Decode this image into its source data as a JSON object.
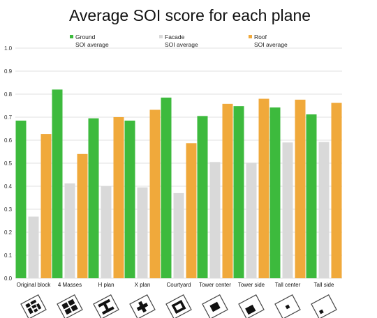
{
  "chart_data": {
    "type": "bar",
    "title": "Average SOI score for each plane",
    "xlabel": "",
    "ylabel": "",
    "ylim": [
      0,
      1
    ],
    "yticks": [
      "0.0",
      "0.1",
      "0.2",
      "0.3",
      "0.4",
      "0.5",
      "0.6",
      "0.7",
      "0.8",
      "0.9",
      "1.0"
    ],
    "grid": true,
    "legend_position": "top",
    "categories": [
      "Original block",
      "4 Masses",
      "H plan",
      "X plan",
      "Courtyard",
      "Tower center",
      "Tower side",
      "Tall center",
      "Tall side"
    ],
    "series": [
      {
        "name": "Ground\nSOI average",
        "color": "#3dba3d",
        "values": [
          0.685,
          0.82,
          0.695,
          0.685,
          0.785,
          0.705,
          0.748,
          0.742,
          0.712
        ]
      },
      {
        "name": "Facade\nSOI average",
        "color": "#d9d9d9",
        "values": [
          0.268,
          0.412,
          0.4,
          0.395,
          0.37,
          0.505,
          0.502,
          0.59,
          0.592
        ]
      },
      {
        "name": "Roof\nSOI average",
        "color": "#f0a93b",
        "values": [
          0.627,
          0.54,
          0.7,
          0.732,
          0.587,
          0.758,
          0.78,
          0.776,
          0.762
        ]
      }
    ],
    "plan_icons": [
      "original-block-plan-icon",
      "four-masses-plan-icon",
      "h-plan-icon",
      "x-plan-icon",
      "courtyard-plan-icon",
      "tower-center-plan-icon",
      "tower-side-plan-icon",
      "tall-center-plan-icon",
      "tall-side-plan-icon"
    ]
  }
}
